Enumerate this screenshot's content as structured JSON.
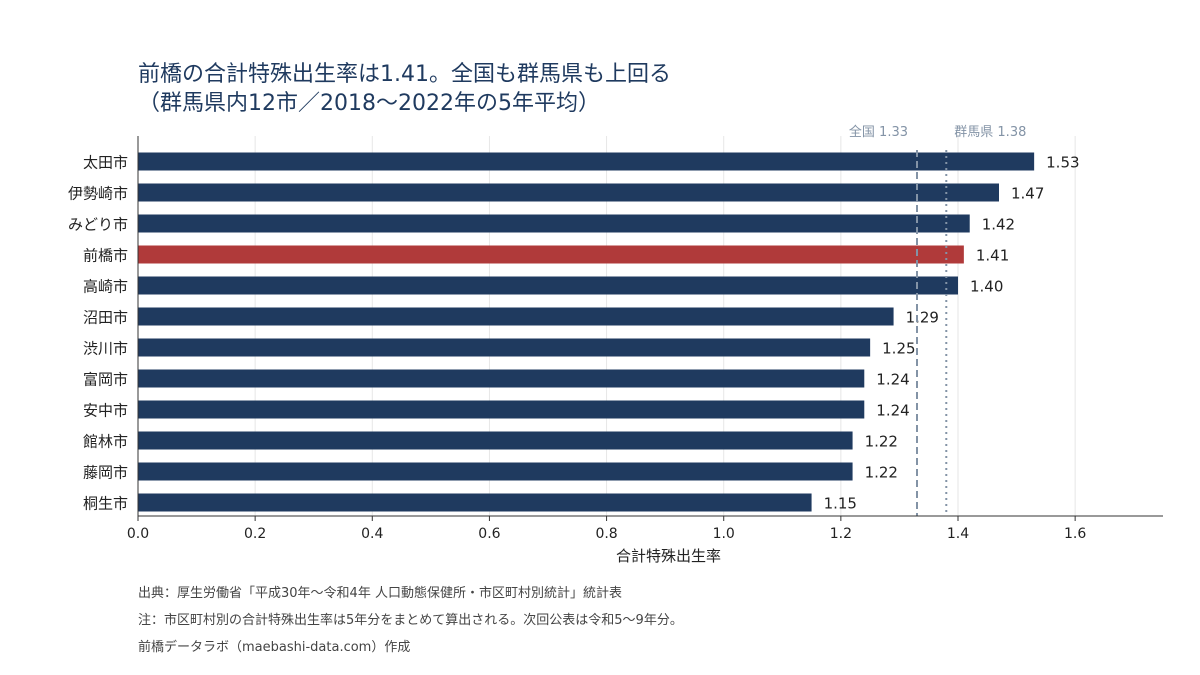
{
  "title": "前橋の合計特殊出生率は1.41。全国も群馬県も上回る\n（群馬県内12市／2018〜2022年の5年平均）",
  "chart_data": {
    "type": "bar",
    "orientation": "horizontal",
    "categories": [
      "太田市",
      "伊勢崎市",
      "みどり市",
      "前橋市",
      "高崎市",
      "沼田市",
      "渋川市",
      "富岡市",
      "安中市",
      "館林市",
      "藤岡市",
      "桐生市"
    ],
    "values": [
      1.53,
      1.47,
      1.42,
      1.41,
      1.4,
      1.29,
      1.25,
      1.24,
      1.24,
      1.22,
      1.22,
      1.15
    ],
    "value_labels": [
      "1.53",
      "1.47",
      "1.42",
      "1.41",
      "1.40",
      "1.29",
      "1.25",
      "1.24",
      "1.24",
      "1.22",
      "1.22",
      "1.15"
    ],
    "highlight": "前橋市",
    "xlabel": "合計特殊出生率",
    "xlim": [
      0,
      1.75
    ],
    "xticks": [
      "0.0",
      "0.2",
      "0.4",
      "0.6",
      "0.8",
      "1.0",
      "1.2",
      "1.4",
      "1.6"
    ],
    "xtick_values": [
      0,
      0.2,
      0.4,
      0.6,
      0.8,
      1.0,
      1.2,
      1.4,
      1.6
    ],
    "grid": "vertical",
    "reference_lines": [
      {
        "label": "全国 1.33",
        "value": 1.33,
        "style": "dashed"
      },
      {
        "label": "群馬県 1.38",
        "value": 1.38,
        "style": "dotted"
      }
    ],
    "colors": {
      "bar": "#1f3a5f",
      "highlight": "#b03a3a",
      "national": "#8393a6",
      "prefecture": "#8393a6"
    }
  },
  "footer": {
    "source": "出典：厚生労働省「平成30年〜令和4年 人口動態保健所・市区町村別統計」統計表",
    "note": "注：市区町村別の合計特殊出生率は5年分をまとめて算出される。次回公表は令和5〜9年分。",
    "credit": "前橋データラボ（maebashi-data.com）作成"
  }
}
